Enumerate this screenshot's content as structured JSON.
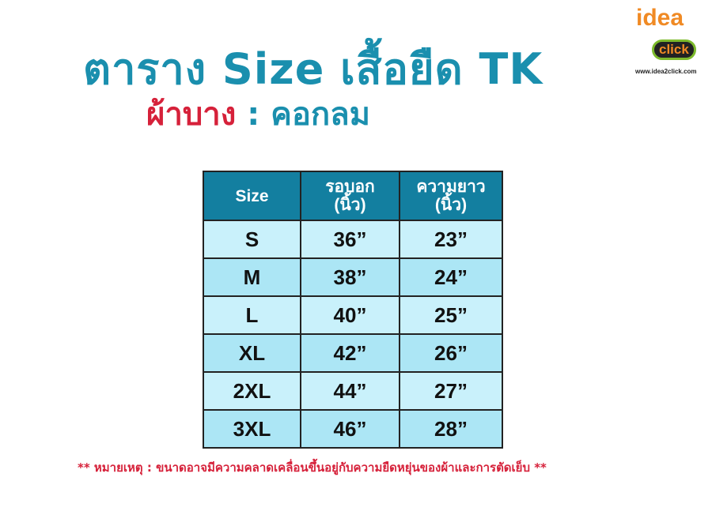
{
  "title": "ตาราง Size เสื้อยืด TK",
  "subtitle": {
    "fabric": "ผ้าบาง",
    "separator": " : ",
    "collar": "คอกลม"
  },
  "logo": {
    "idea": "idea",
    "click": "click",
    "url": "www.idea2click.com"
  },
  "table": {
    "headers": [
      "Size",
      "รอบอก (นิ้ว)",
      "ความยาว (นิ้ว)"
    ],
    "rows": [
      [
        "S",
        "36”",
        "23”"
      ],
      [
        "M",
        "38”",
        "24”"
      ],
      [
        "L",
        "40”",
        "25”"
      ],
      [
        "XL",
        "42”",
        "26”"
      ],
      [
        "2XL",
        "44”",
        "27”"
      ],
      [
        "3XL",
        "46”",
        "28”"
      ]
    ]
  },
  "note": "** หมายเหตุ : ขนาดอาจมีความคลาดเคลื่อนขึ้นอยู่กับความยืดหยุ่นของผ้าและการตัดเย็บ **",
  "colors": {
    "title": "#1a8fae",
    "accent": "#d6213a",
    "header": "#137fa0",
    "row": "#c9f1fb"
  }
}
